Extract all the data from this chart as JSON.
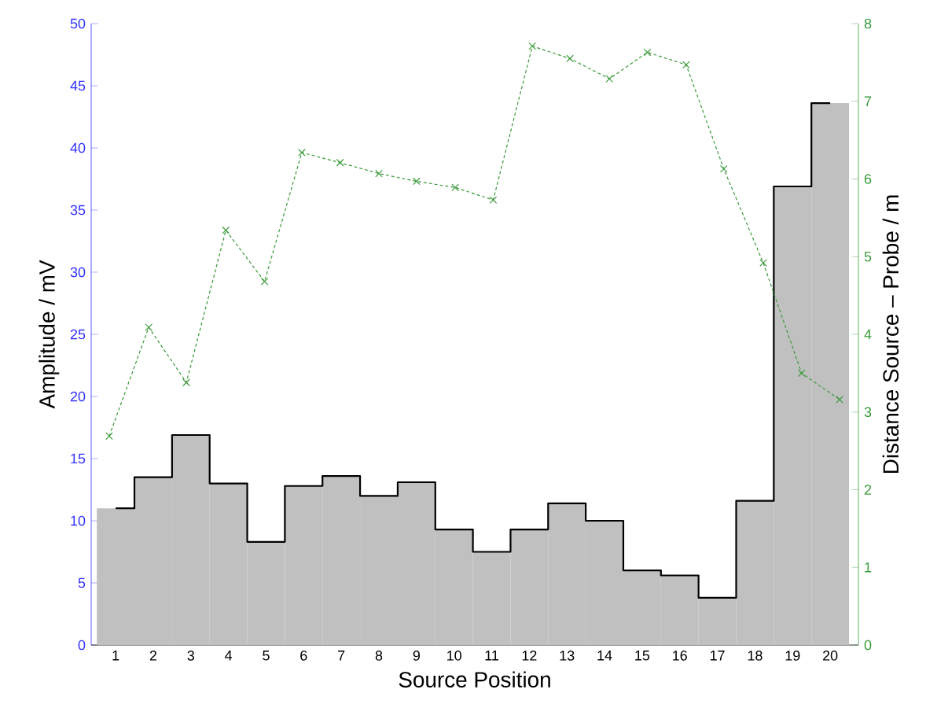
{
  "chart_data": {
    "type": "bar",
    "xlabel": "Source Position",
    "ylabel": "Amplitude / mV",
    "y2label": "Distance Source – Probe / m",
    "x": [
      1,
      2,
      3,
      4,
      5,
      6,
      7,
      8,
      9,
      10,
      11,
      12,
      13,
      14,
      15,
      16,
      17,
      18,
      19,
      20
    ],
    "xlim": [
      0.35,
      20.75
    ],
    "xticks": [
      1,
      2,
      3,
      4,
      5,
      6,
      7,
      8,
      9,
      10,
      11,
      12,
      13,
      14,
      15,
      16,
      17,
      18,
      19,
      20
    ],
    "ylim": [
      0,
      50
    ],
    "yticks": [
      0,
      5,
      10,
      15,
      20,
      25,
      30,
      35,
      40,
      45,
      50
    ],
    "y2lim": [
      0,
      8
    ],
    "y2ticks": [
      0,
      1,
      2,
      3,
      4,
      5,
      6,
      7,
      8
    ],
    "series": [
      {
        "color": "#c0c0c0",
        "values": [
          11.0,
          13.5,
          16.9,
          13.0,
          8.3,
          12.8,
          13.6,
          12.0,
          13.1,
          9.3,
          7.5,
          9.3,
          11.4,
          10.0,
          6.0,
          5.6,
          3.8,
          11.6,
          36.9,
          43.6
        ]
      },
      {
        "type": "step",
        "color": "#000000",
        "values": [
          11.0,
          13.5,
          16.9,
          13.0,
          8.3,
          12.8,
          13.6,
          12.0,
          13.1,
          9.3,
          7.5,
          9.3,
          11.4,
          10.0,
          6.0,
          5.6,
          3.8,
          11.6,
          36.9,
          43.6
        ]
      },
      {
        "type": "line",
        "axis": "y2",
        "color": "#3a9a3a",
        "marker": "cross",
        "line_style": "dashed",
        "x": [
          0.83,
          1.88,
          2.88,
          3.93,
          4.96,
          5.95,
          6.97,
          8.0,
          9.0,
          10.03,
          11.04,
          12.08,
          13.08,
          14.13,
          15.14,
          16.17,
          17.17,
          18.22,
          19.24,
          20.25
        ],
        "values": [
          2.69,
          4.09,
          3.38,
          5.34,
          4.68,
          6.34,
          6.21,
          6.07,
          5.97,
          5.89,
          5.73,
          7.71,
          7.55,
          7.29,
          7.63,
          7.47,
          6.13,
          4.92,
          3.5,
          3.16
        ]
      }
    ]
  }
}
